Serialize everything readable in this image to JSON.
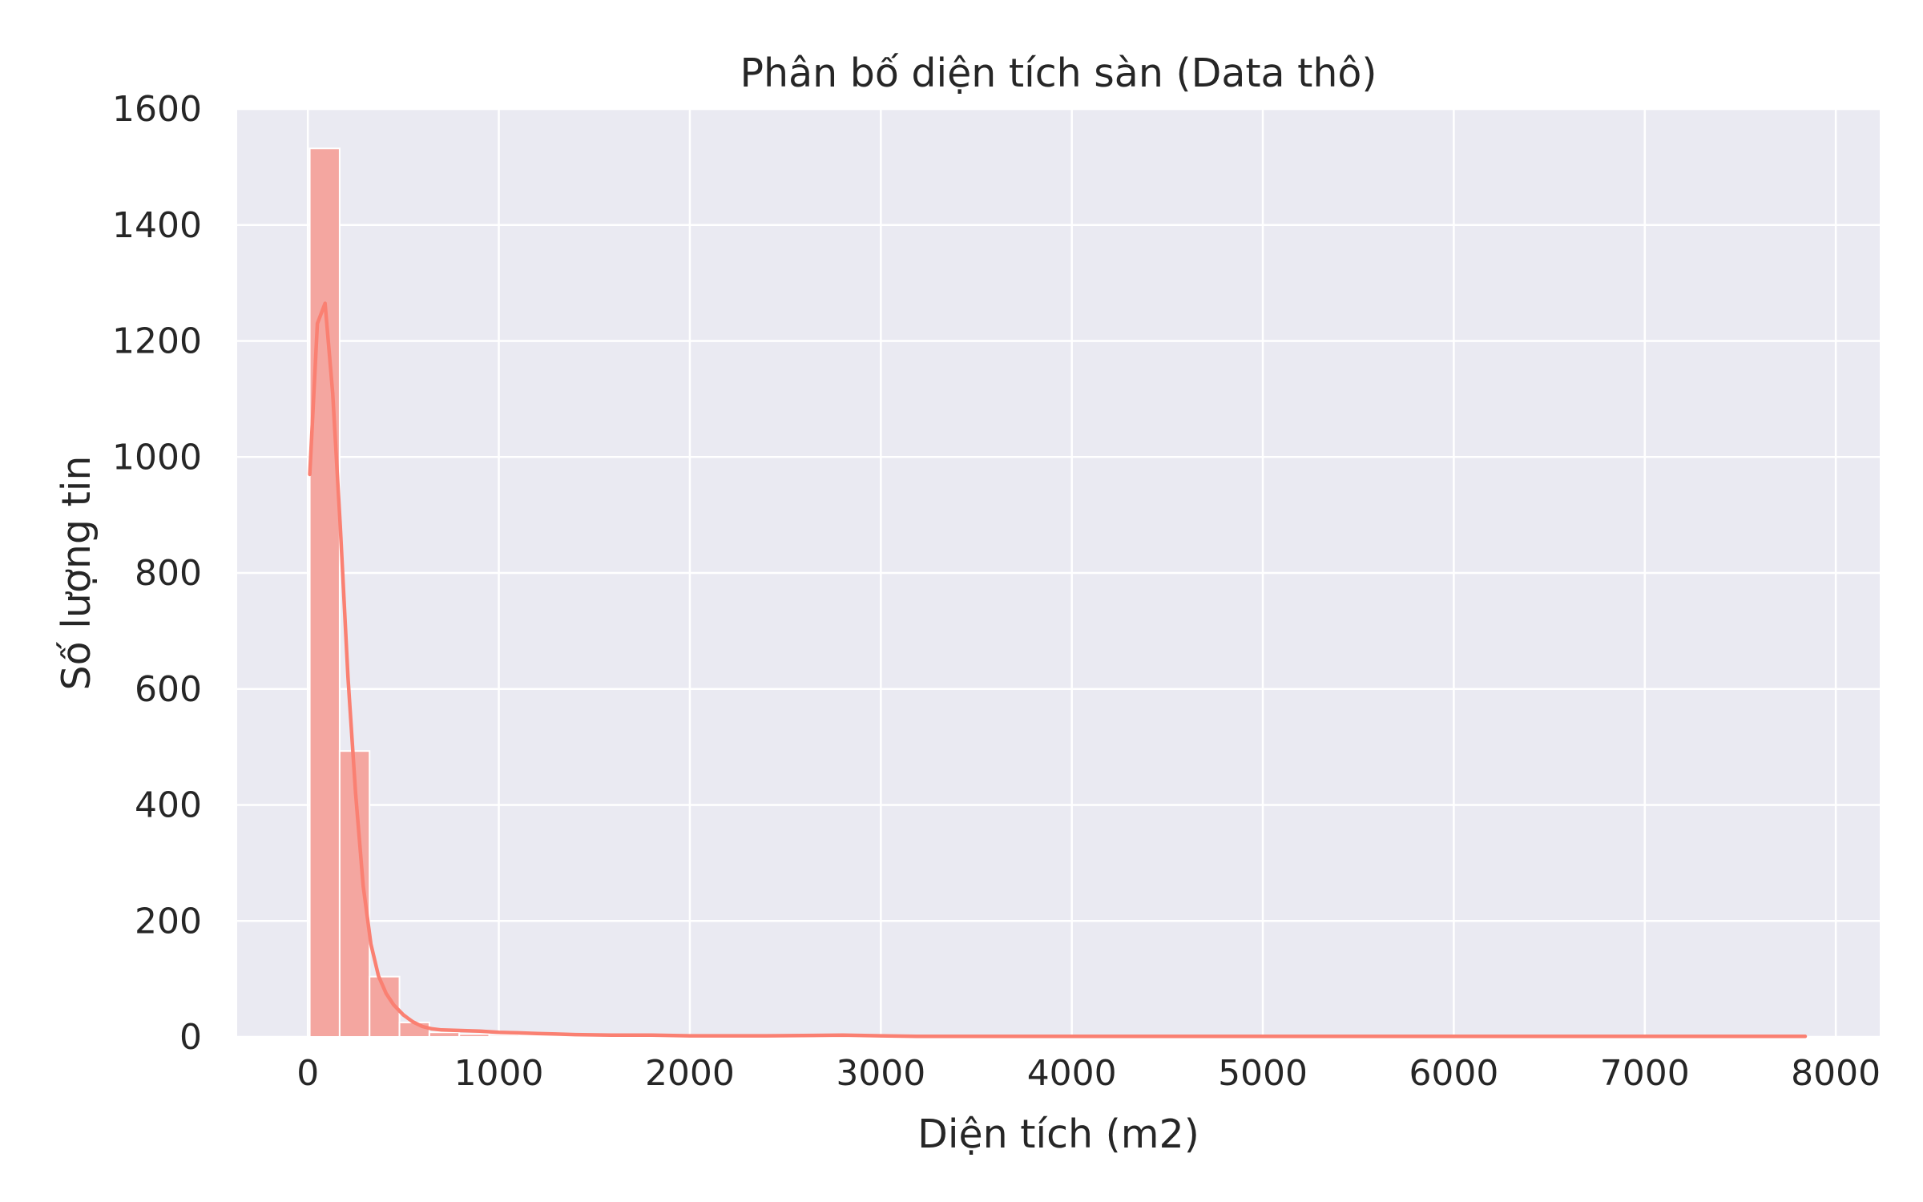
{
  "chart_data": {
    "type": "bar",
    "subtype": "histogram-with-kde",
    "title": "Phân bố diện tích sàn (Data thô)",
    "xlabel": "Diện tích (m2)",
    "ylabel": "Số lượng tin",
    "xlim": [
      -370,
      8230
    ],
    "ylim": [
      0,
      1600
    ],
    "xticks": [
      0,
      1000,
      2000,
      3000,
      4000,
      5000,
      6000,
      7000,
      8000
    ],
    "yticks": [
      0,
      200,
      400,
      600,
      800,
      1000,
      1200,
      1400,
      1600
    ],
    "grid": true,
    "legend": "none",
    "colors": {
      "background": "#eaeaf2",
      "grid": "#ffffff",
      "bar_fill": "#f4a6a0",
      "bar_edge": "#ffffff",
      "kde_line": "#fa8072",
      "text": "#262626"
    },
    "bins": {
      "start": 10,
      "width": 156.6,
      "counts": [
        1532,
        493,
        104,
        25,
        8,
        5,
        3,
        2,
        2,
        1,
        0,
        1,
        1,
        1,
        0,
        0,
        1,
        1,
        0,
        0,
        0,
        0,
        0,
        0,
        0,
        0,
        0,
        0,
        1,
        0,
        0,
        0,
        0,
        0,
        0,
        0,
        0,
        0,
        0,
        0,
        0,
        0,
        0,
        0,
        0,
        0,
        0,
        0,
        0,
        1
      ]
    },
    "kde": {
      "x": [
        10,
        50,
        90,
        130,
        170,
        210,
        250,
        290,
        330,
        370,
        410,
        450,
        500,
        550,
        600,
        650,
        700,
        800,
        900,
        1000,
        1100,
        1200,
        1300,
        1400,
        1600,
        1800,
        2000,
        2400,
        2800,
        3000,
        3200,
        4000,
        5000,
        6000,
        7000,
        7840
      ],
      "y": [
        970,
        1230,
        1265,
        1110,
        880,
        620,
        420,
        260,
        160,
        105,
        75,
        55,
        38,
        26,
        18,
        14,
        12,
        11,
        10,
        8,
        7,
        6,
        5,
        4,
        3,
        3,
        2,
        2,
        3,
        2,
        1,
        1,
        1,
        1,
        1,
        1
      ]
    }
  }
}
